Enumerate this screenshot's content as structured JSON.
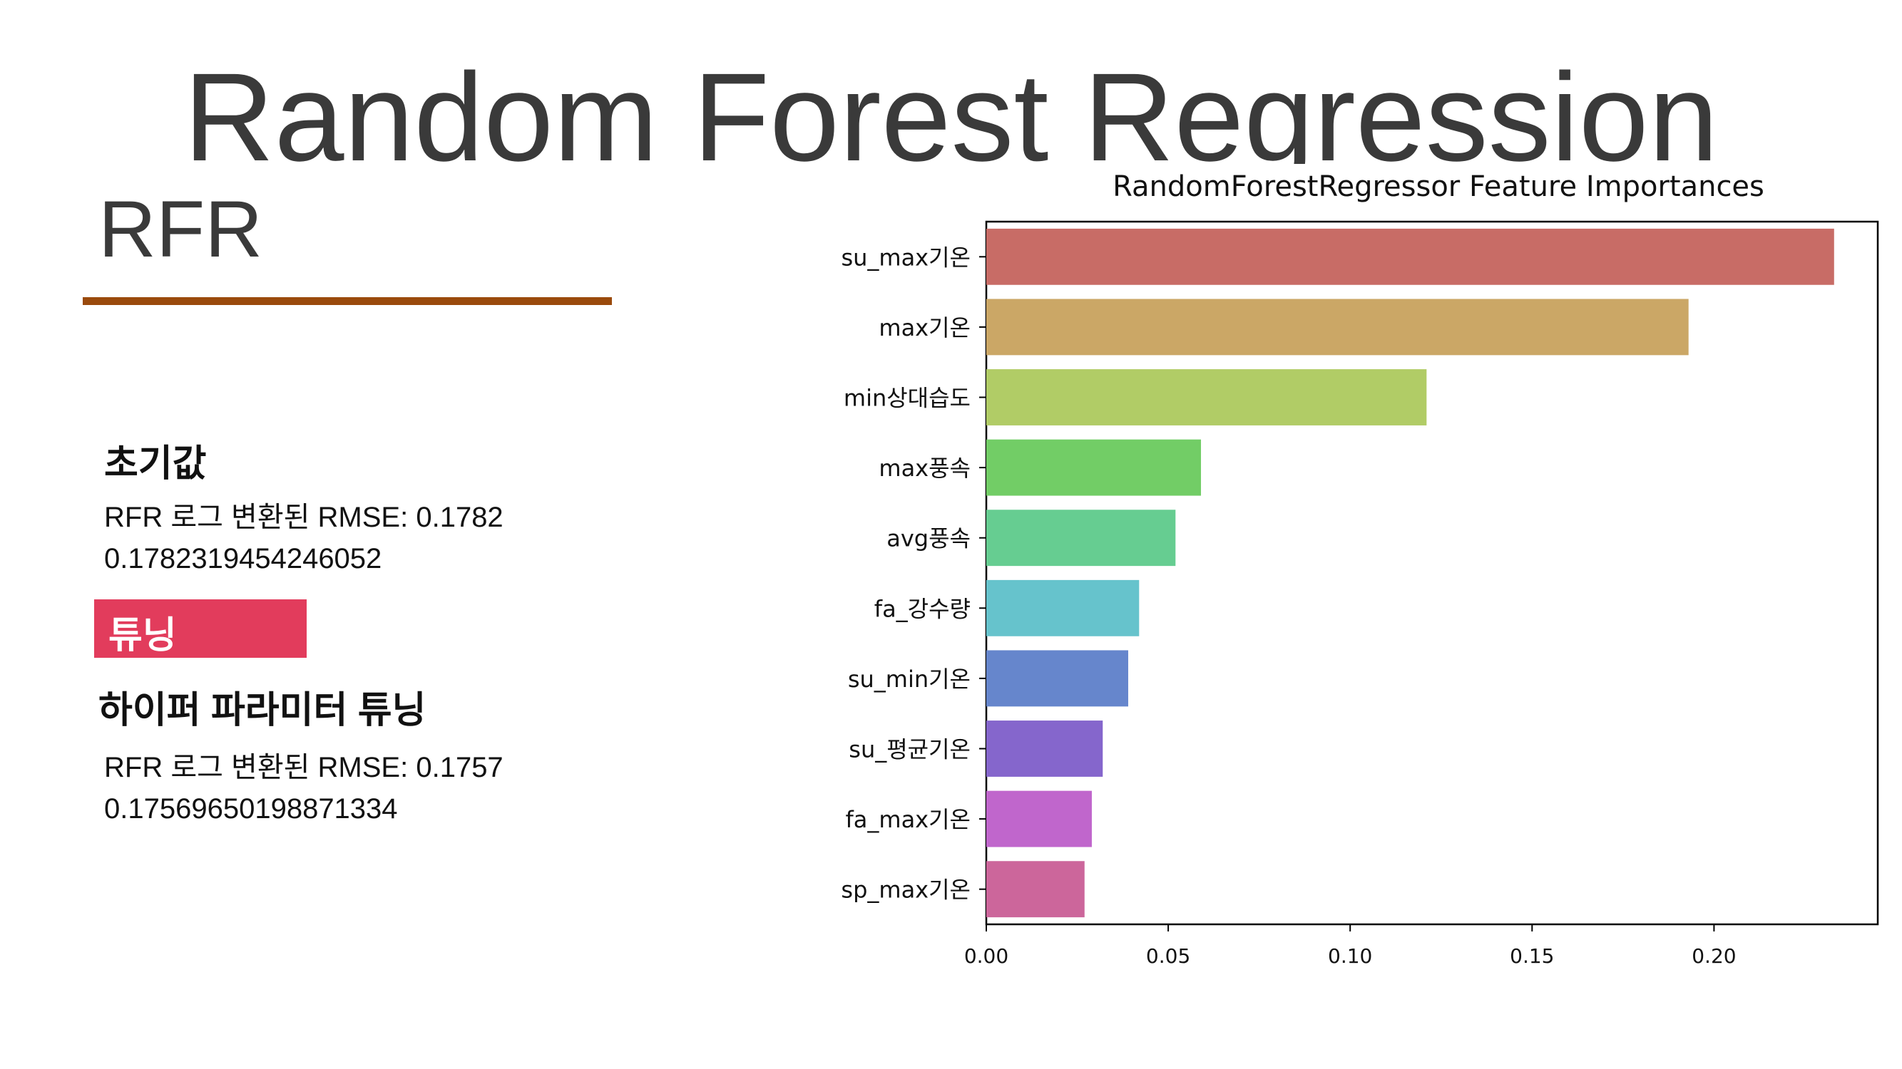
{
  "slide": {
    "title": "Random Forest Regression",
    "section_title": "RFR",
    "initial_heading": "초기값",
    "initial_line1": "RFR 로그 변환된 RMSE: 0.1782",
    "initial_line2": "0.1782319454246052",
    "tuning_badge": "튜닝",
    "tuning_heading": "하이퍼 파라미터 튜닝",
    "tuned_line1": "RFR 로그 변환된 RMSE: 0.1757",
    "tuned_line2": "0.17569650198871334",
    "rule_color": "#9a4a0c",
    "badge_color": "#e23c5c"
  },
  "chart_data": {
    "type": "bar",
    "orientation": "horizontal",
    "title": "RandomForestRegressor Feature Importances",
    "xlabel": "",
    "ylabel": "",
    "categories": [
      "su_max기온",
      "max기온",
      "min상대습도",
      "max풍속",
      "avg풍속",
      "fa_강수량",
      "su_min기온",
      "su_평균기온",
      "fa_max기온",
      "sp_max기온"
    ],
    "values": [
      0.233,
      0.193,
      0.121,
      0.059,
      0.052,
      0.042,
      0.039,
      0.032,
      0.029,
      0.027
    ],
    "colors": [
      "#c86c66",
      "#cba766",
      "#b1cc66",
      "#72cd66",
      "#66cd91",
      "#66c3cc",
      "#6686cc",
      "#8566cc",
      "#c066cc",
      "#cc669b"
    ],
    "xlim": [
      0,
      0.245
    ],
    "xticks": [
      0.0,
      0.05,
      0.1,
      0.15,
      0.2
    ],
    "xtick_labels": [
      "0.00",
      "0.05",
      "0.10",
      "0.15",
      "0.20"
    ],
    "grid": false
  }
}
